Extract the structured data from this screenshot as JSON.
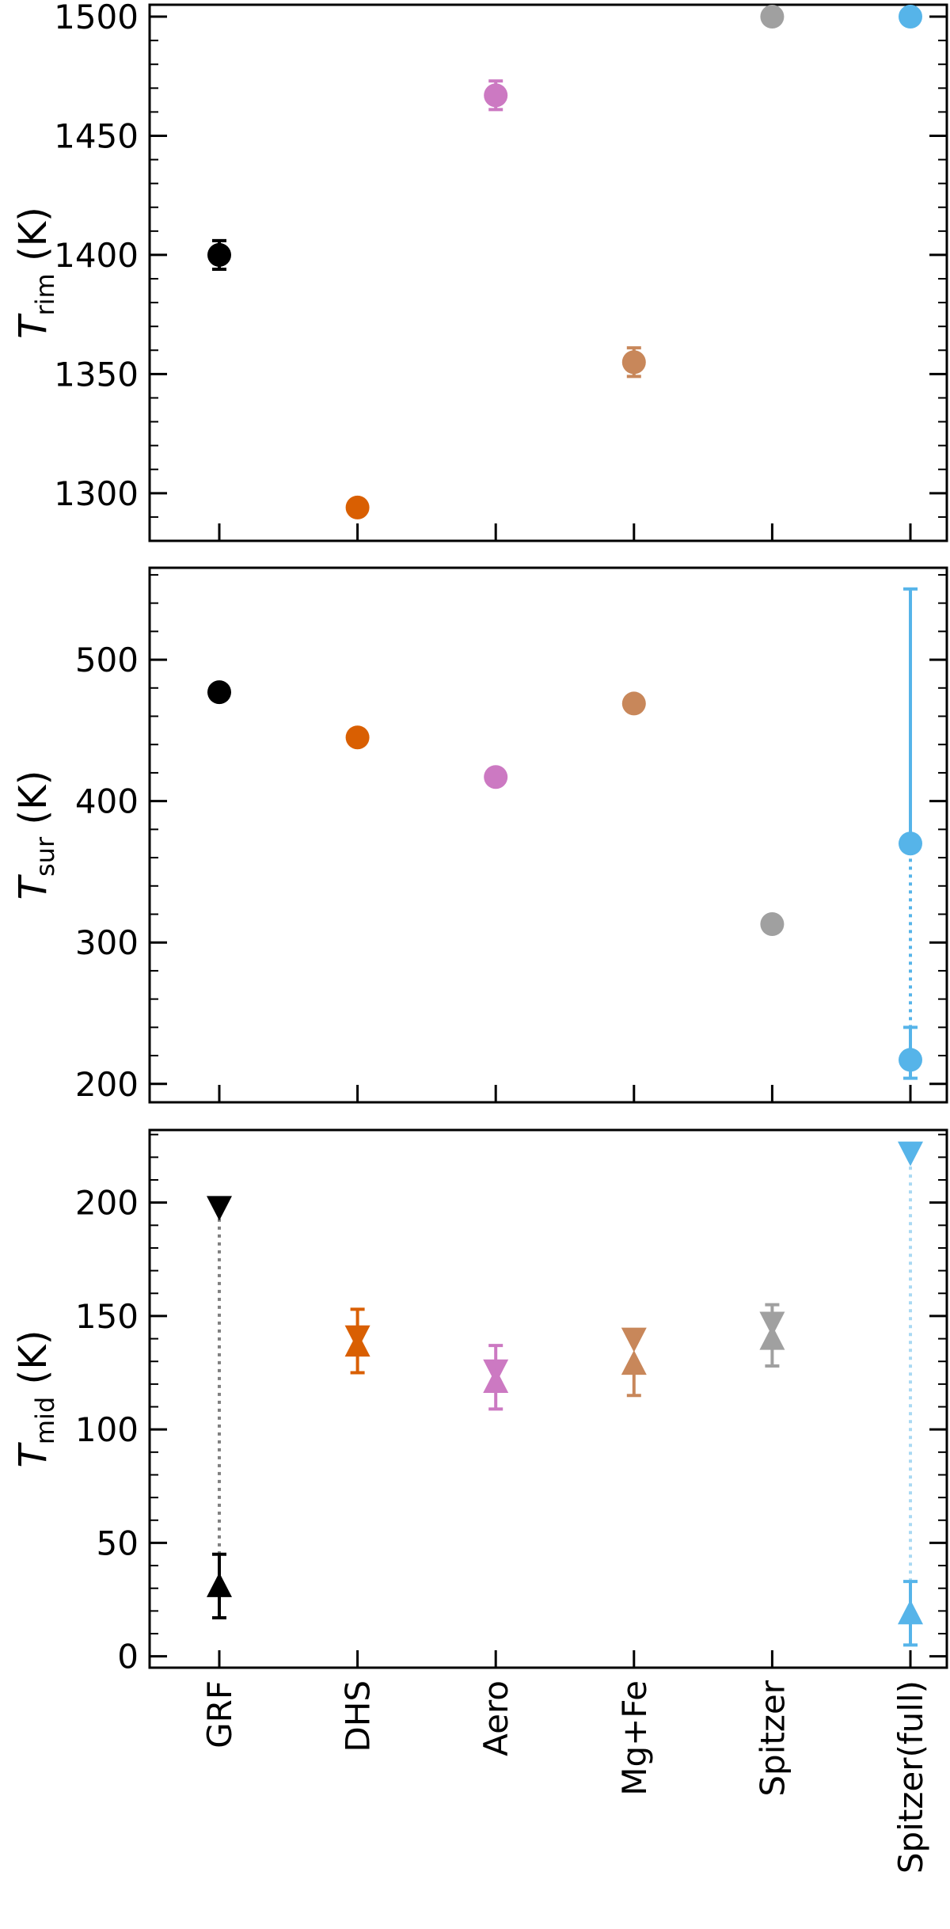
{
  "categories": [
    "GRF",
    "DHS",
    "Aero",
    "Mg+Fe",
    "Spitzer",
    "Spitzer(full)"
  ],
  "colors": {
    "GRF": "#000000",
    "DHS": "#d95f02",
    "Aero": "#cc79c2",
    "Mg+Fe": "#c8875a",
    "Spitzer": "#a0a0a0",
    "Spitzer(full)": "#56b4e9"
  },
  "chart_data": [
    {
      "type": "scatter",
      "panel": "top",
      "ylabel": {
        "main": "T",
        "sub": "rim",
        "unit": " (K)"
      },
      "ylim": [
        1280,
        1505
      ],
      "yticks": [
        1300,
        1350,
        1400,
        1450,
        1500
      ],
      "points": [
        {
          "cat": "GRF",
          "y": 1400,
          "err_lo": 6,
          "err_hi": 6,
          "marker": "circle"
        },
        {
          "cat": "DHS",
          "y": 1294,
          "err_lo": 2,
          "err_hi": 2,
          "marker": "circle"
        },
        {
          "cat": "Aero",
          "y": 1467,
          "err_lo": 6,
          "err_hi": 6,
          "marker": "circle"
        },
        {
          "cat": "Mg+Fe",
          "y": 1355,
          "err_lo": 6,
          "err_hi": 6,
          "marker": "circle"
        },
        {
          "cat": "Spitzer",
          "y": 1500,
          "err_lo": 0,
          "err_hi": 0,
          "marker": "circle"
        },
        {
          "cat": "Spitzer(full)",
          "y": 1500,
          "err_lo": 0,
          "err_hi": 0,
          "marker": "circle"
        }
      ]
    },
    {
      "type": "scatter",
      "panel": "middle",
      "ylabel": {
        "main": "T",
        "sub": "sur",
        "unit": " (K)"
      },
      "ylim": [
        187,
        565
      ],
      "yticks": [
        200,
        300,
        400,
        500
      ],
      "points": [
        {
          "cat": "GRF",
          "y": 477,
          "err_lo": 0,
          "err_hi": 0,
          "marker": "circle"
        },
        {
          "cat": "DHS",
          "y": 445,
          "err_lo": 0,
          "err_hi": 0,
          "marker": "circle"
        },
        {
          "cat": "Aero",
          "y": 417,
          "err_lo": 0,
          "err_hi": 0,
          "marker": "circle"
        },
        {
          "cat": "Mg+Fe",
          "y": 469,
          "err_lo": 0,
          "err_hi": 0,
          "marker": "circle"
        },
        {
          "cat": "Spitzer",
          "y": 313,
          "err_lo": 0,
          "err_hi": 0,
          "marker": "circle"
        },
        {
          "cat": "Spitzer(full)",
          "y": 370,
          "err_lo": 0,
          "err_hi": 180,
          "marker": "circle"
        },
        {
          "cat": "Spitzer(full)",
          "y": 217,
          "err_lo": 13,
          "err_hi": 23,
          "marker": "circle"
        }
      ],
      "connectors": [
        {
          "cat": "Spitzer(full)",
          "from": 217,
          "to": 370,
          "style": "dotted"
        }
      ]
    },
    {
      "type": "scatter",
      "panel": "bottom",
      "ylabel": {
        "main": "T",
        "sub": "mid",
        "unit": " (K)"
      },
      "ylim": [
        -5,
        232
      ],
      "yticks": [
        0,
        50,
        100,
        150,
        200
      ],
      "points": [
        {
          "cat": "GRF",
          "y": 198,
          "err_lo": 0,
          "err_hi": 0,
          "marker": "triangle-down"
        },
        {
          "cat": "GRF",
          "y": 31,
          "err_lo": 14,
          "err_hi": 14,
          "marker": "triangle-up"
        },
        {
          "cat": "DHS",
          "y": 141,
          "err_lo": 0,
          "err_hi": 12,
          "marker": "triangle-down"
        },
        {
          "cat": "DHS",
          "y": 137,
          "err_lo": 12,
          "err_hi": 0,
          "marker": "triangle-up"
        },
        {
          "cat": "Aero",
          "y": 126,
          "err_lo": 0,
          "err_hi": 11,
          "marker": "triangle-down"
        },
        {
          "cat": "Aero",
          "y": 121,
          "err_lo": 12,
          "err_hi": 0,
          "marker": "triangle-up"
        },
        {
          "cat": "Mg+Fe",
          "y": 140,
          "err_lo": 0,
          "err_hi": 0,
          "marker": "triangle-down"
        },
        {
          "cat": "Mg+Fe",
          "y": 129,
          "err_lo": 14,
          "err_hi": 0,
          "marker": "triangle-up"
        },
        {
          "cat": "Spitzer",
          "y": 147,
          "err_lo": 0,
          "err_hi": 8,
          "marker": "triangle-down"
        },
        {
          "cat": "Spitzer",
          "y": 140,
          "err_lo": 12,
          "err_hi": 0,
          "marker": "triangle-up"
        },
        {
          "cat": "Spitzer(full)",
          "y": 222,
          "err_lo": 0,
          "err_hi": 0,
          "marker": "triangle-down"
        },
        {
          "cat": "Spitzer(full)",
          "y": 19,
          "err_lo": 14,
          "err_hi": 14,
          "marker": "triangle-up"
        }
      ],
      "connectors": [
        {
          "cat": "GRF",
          "from": 31,
          "to": 198,
          "style": "dotted"
        },
        {
          "cat": "Spitzer(full)",
          "from": 19,
          "to": 222,
          "style": "dotted-light"
        }
      ]
    }
  ]
}
